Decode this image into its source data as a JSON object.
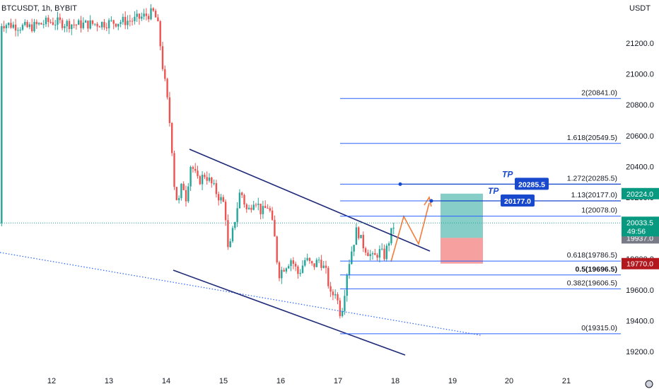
{
  "chart_data": {
    "type": "candlestick",
    "title": "BTCUSDT, 1h, BYBIT",
    "currency": "USDT",
    "y_ticks": [
      19200.0,
      19400.0,
      19600.0,
      19800.0,
      20000.0,
      20200.0,
      20400.0,
      20600.0,
      20800.0,
      21000.0,
      21200.0
    ],
    "x_ticks": [
      "12",
      "13",
      "14",
      "15",
      "16",
      "17",
      "18",
      "19",
      "20",
      "21"
    ],
    "current_price": "20033.5",
    "countdown": "49:56",
    "price_tags": [
      {
        "label": "20224.0",
        "value": 20224.0,
        "color": "#089981"
      },
      {
        "label": "19937.0",
        "value": 19937.0,
        "color": "#787b86"
      },
      {
        "label": "19770.0",
        "value": 19770.0,
        "color": "#b2181e"
      }
    ],
    "fib_levels": [
      {
        "label": "2(20841.0)",
        "value": 20841.0,
        "bold": false
      },
      {
        "label": "1.618(20549.5)",
        "value": 20549.5,
        "bold": false
      },
      {
        "label": "1.272(20285.5)",
        "value": 20285.5,
        "bold": false
      },
      {
        "label": "1.13(20177.0)",
        "value": 20177.0,
        "bold": false
      },
      {
        "label": "1(20078.0)",
        "value": 20078.0,
        "bold": false
      },
      {
        "label": "0.618(19786.5)",
        "value": 19786.5,
        "bold": false
      },
      {
        "label": "0.5(19696.5)",
        "value": 19696.5,
        "bold": true
      },
      {
        "label": "0.382(19606.5)",
        "value": 19606.5,
        "bold": false
      },
      {
        "label": "0(19315.0)",
        "value": 19315.0,
        "bold": false
      }
    ],
    "targets": [
      {
        "tag": "TP",
        "label": "20285.5",
        "value": 20285.5
      },
      {
        "tag": "TP",
        "label": "20177.0",
        "value": 20177.0
      }
    ],
    "position": {
      "entry": 19937.0,
      "target": 20224.0,
      "stop": 19770.0
    },
    "colors": {
      "up": "#26a69a",
      "down": "#ef5350",
      "channel": "#1e2a78",
      "fib": "#2962ff",
      "projection": "#f57c39"
    }
  }
}
